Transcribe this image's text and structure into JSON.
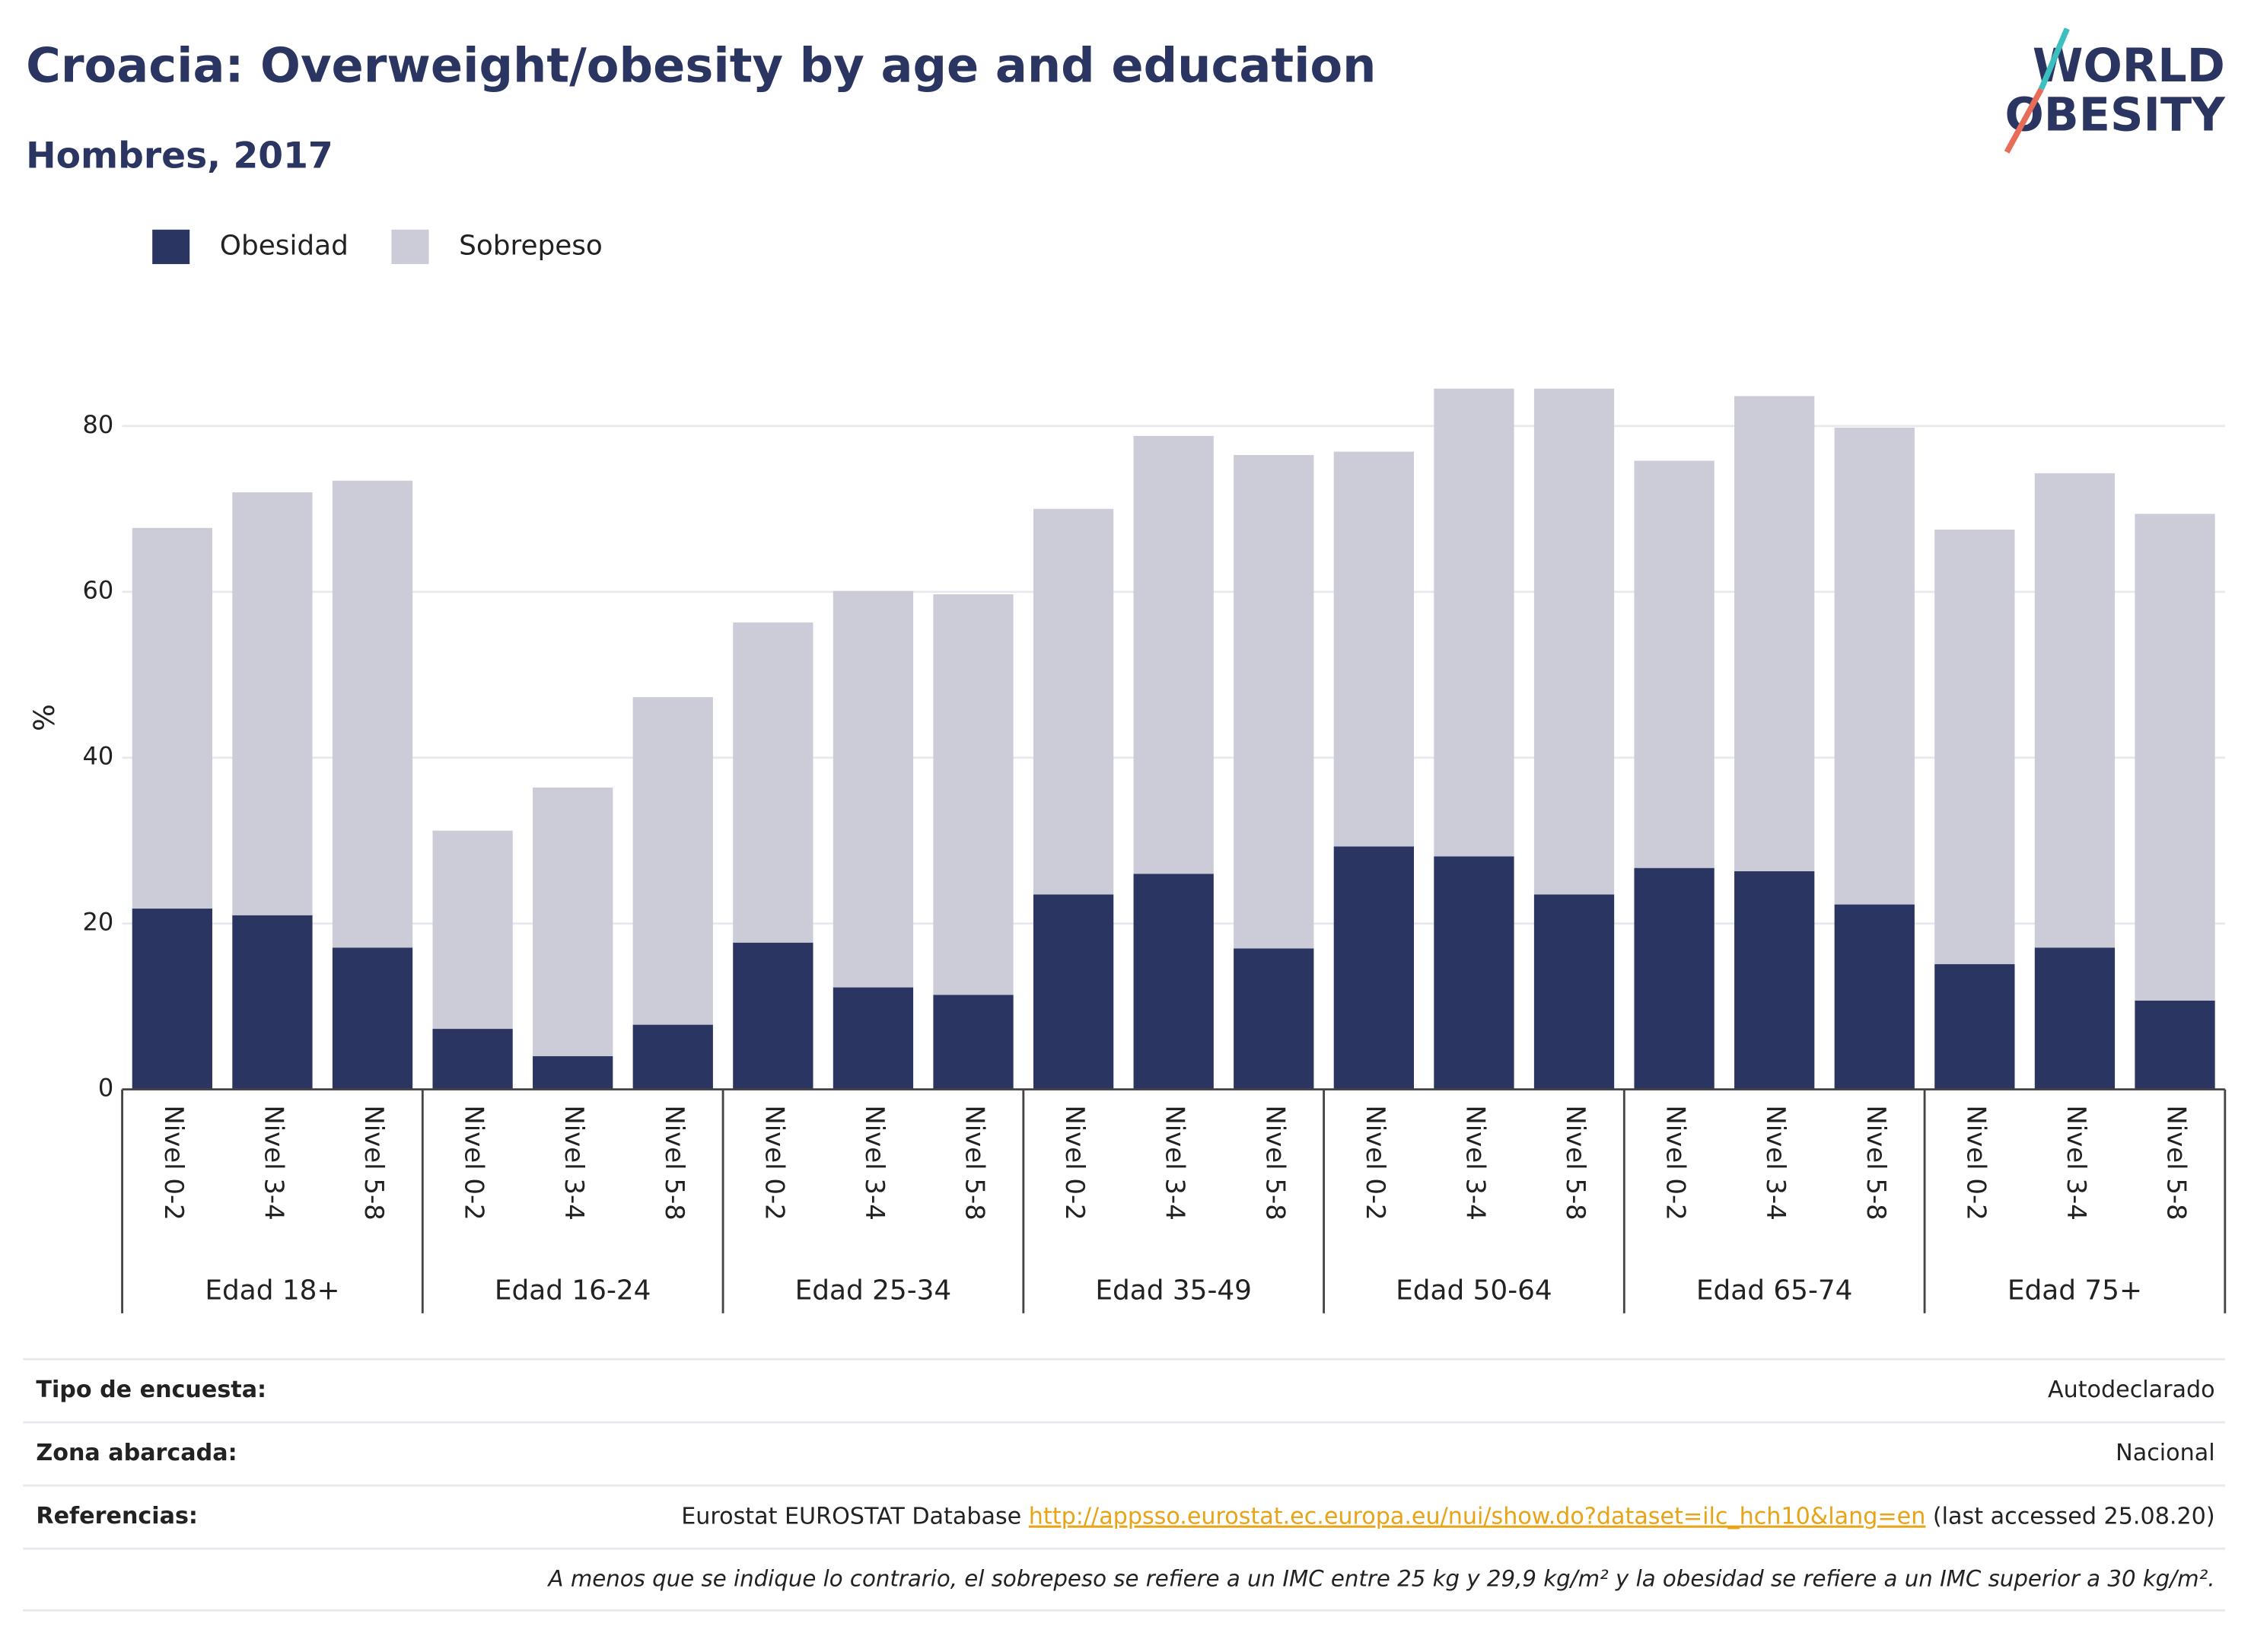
{
  "chart_data": {
    "type": "stacked_bar",
    "title": "Croacia: Overweight/obesity by age and education",
    "subtitle": "Hombres, 2017",
    "y_label": "%",
    "categories": [
      "Nivel 0-2",
      "Nivel 3-4",
      "Nivel 5-8",
      "Nivel 0-2",
      "Nivel 3-4",
      "Nivel 5-8",
      "Nivel 0-2",
      "Nivel 3-4",
      "Nivel 5-8",
      "Nivel 0-2",
      "Nivel 3-4",
      "Nivel 5-8",
      "Nivel 0-2",
      "Nivel 3-4",
      "Nivel 5-8",
      "Nivel 0-2",
      "Nivel 3-4",
      "Nivel 5-8",
      "Nivel 0-2",
      "Nivel 3-4",
      "Nivel 5-8"
    ],
    "groups": [
      "Edad 18+",
      "Edad 16-24",
      "Edad 25-34",
      "Edad 35-49",
      "Edad 50-64",
      "Edad 65-74",
      "Edad 75+"
    ],
    "series": [
      {
        "name": "Obesidad",
        "color": "#2a3561",
        "values": [
          21.8,
          21.0,
          17.1,
          7.3,
          4.0,
          7.8,
          17.7,
          12.3,
          11.4,
          23.5,
          26.0,
          17.0,
          29.3,
          28.1,
          23.5,
          26.7,
          26.3,
          22.3,
          15.1,
          17.1,
          10.7
        ]
      },
      {
        "name": "Sobrepeso",
        "color": "#cbccd8",
        "values": [
          45.9,
          51.0,
          56.3,
          23.9,
          32.4,
          39.5,
          38.6,
          47.8,
          48.3,
          46.5,
          52.8,
          59.5,
          47.6,
          56.4,
          61.0,
          49.1,
          57.3,
          57.5,
          52.4,
          57.2,
          58.7
        ]
      }
    ],
    "ylim": [
      0,
      90
    ],
    "yticks": [
      0,
      20,
      40,
      60,
      80
    ],
    "grid": true,
    "legend": "top-left"
  },
  "logo": [
    "WORLD",
    "OBESITY"
  ],
  "footer": {
    "rows": [
      {
        "label": "Tipo de encuesta:",
        "value": "Autodeclarado"
      },
      {
        "label": "Zona abarcada:",
        "value": "Nacional"
      },
      {
        "label": "Referencias:",
        "value": [
          "Eurostat EUROSTAT Database ",
          "http://appsso.eurostat.ec.europa.eu/nui/show.do?dataset=ilc_hch10&lang=en",
          " (last accessed 25.08.20)"
        ]
      }
    ],
    "note": "A menos que se indique lo contrario, el sobrepeso se refiere a un IMC entre 25 kg y 29,9 kg/m² y la obesidad se refiere a un IMC superior a 30 kg/m²."
  }
}
